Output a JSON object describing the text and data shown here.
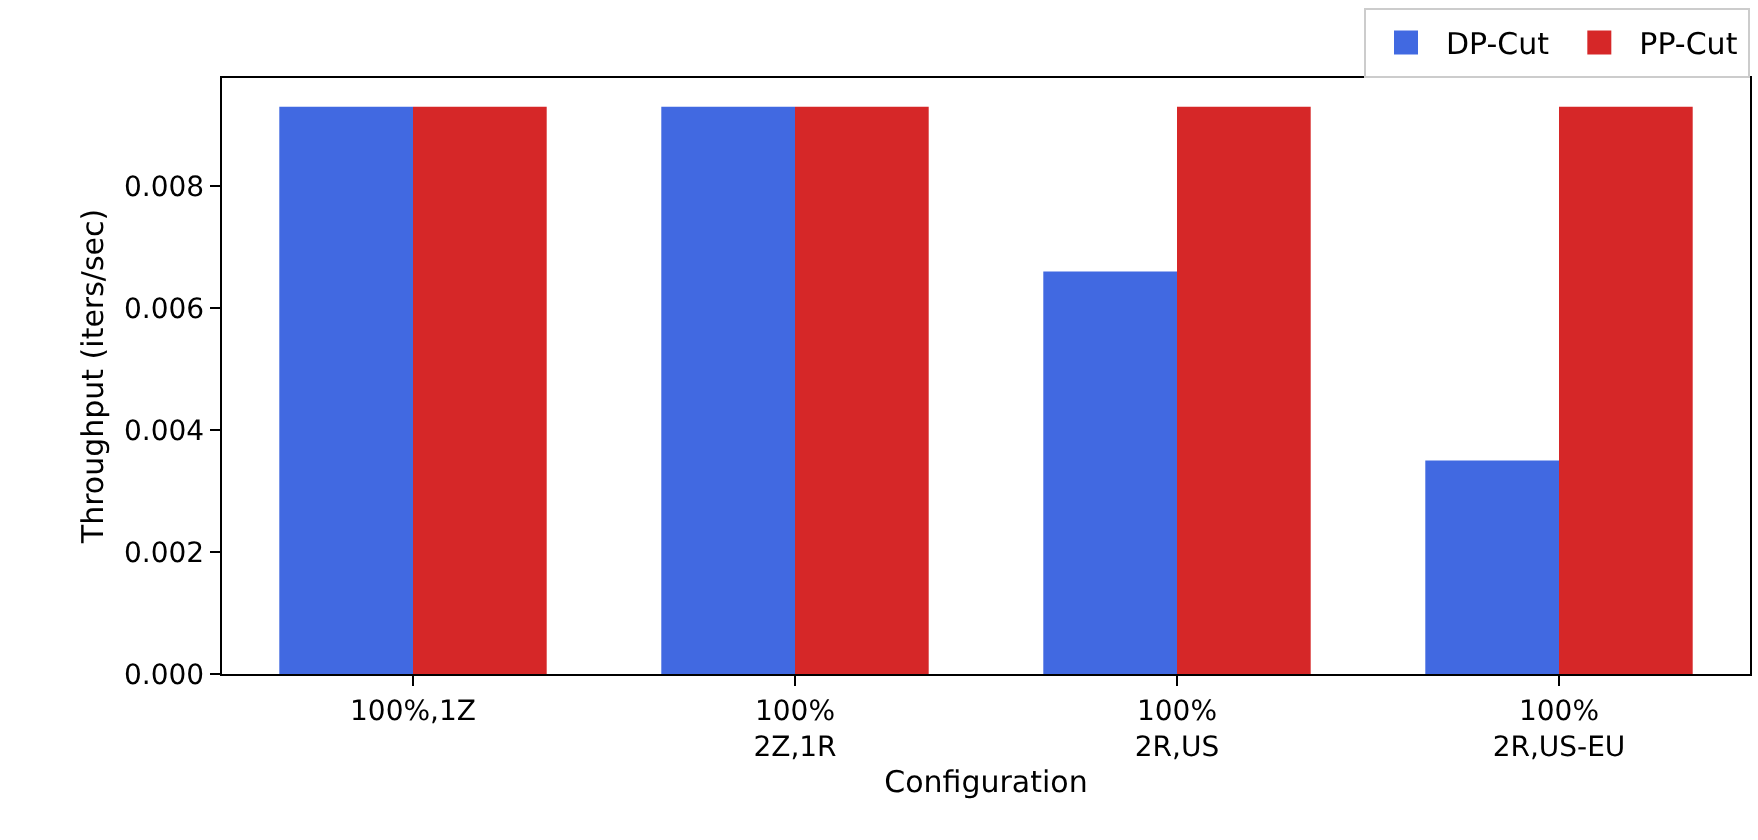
{
  "chart_data": {
    "type": "bar",
    "xlabel": "Configuration",
    "ylabel": "Throughput (iters/sec)",
    "categories": [
      "100%,1Z",
      "100%\n2Z,1R",
      "100%\n2R,US",
      "100%\n2R,US-EU"
    ],
    "series": [
      {
        "name": "DP-Cut",
        "color": "#4169e1",
        "values": [
          0.0093,
          0.0093,
          0.0066,
          0.0035
        ]
      },
      {
        "name": "PP-Cut",
        "color": "#d62728",
        "values": [
          0.0093,
          0.0093,
          0.0093,
          0.0093
        ]
      }
    ],
    "ylim": [
      0,
      0.00977
    ],
    "yticks": [
      {
        "value": 0,
        "label": "0.000"
      },
      0.002,
      0.004,
      0.006,
      0.008
    ],
    "legend": "top right",
    "grid": false
  }
}
